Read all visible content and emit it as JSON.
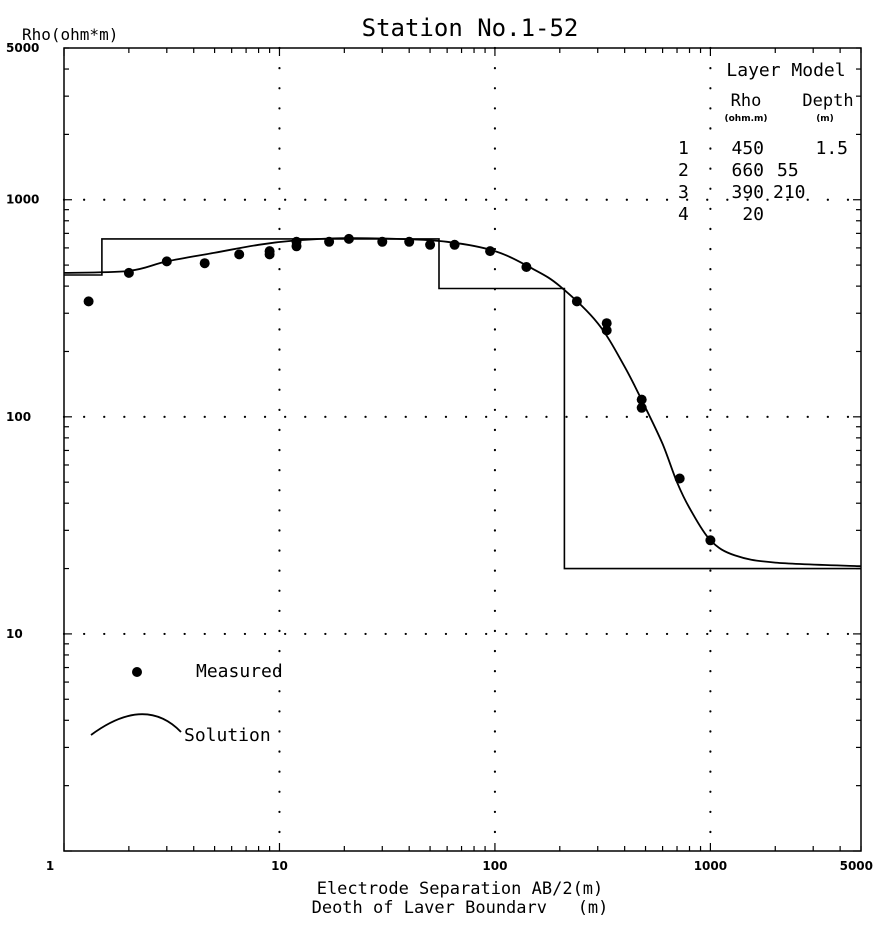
{
  "chart_data": {
    "type": "scatter",
    "title": "Station No.1-52",
    "ylabel": "Rho(ohm*m)",
    "xlabel_lines": [
      "Electrode Separation AB/2(m)",
      "Deoth of Laver Boundarv   (m)"
    ],
    "x_scale": "log",
    "y_scale": "log",
    "xlim": [
      1,
      5000
    ],
    "ylim": [
      1,
      5000
    ],
    "x_ticks": [
      {
        "value": 1,
        "label": "1"
      },
      {
        "value": 10,
        "label": "10"
      },
      {
        "value": 100,
        "label": "100"
      },
      {
        "value": 1000,
        "label": "1000"
      },
      {
        "value": 5000,
        "label": "5000"
      }
    ],
    "y_ticks": [
      {
        "value": 5000,
        "label": "5000"
      },
      {
        "value": 1000,
        "label": "1000"
      },
      {
        "value": 100,
        "label": "100"
      },
      {
        "value": 10,
        "label": "10"
      }
    ],
    "grid": "dotted at decades",
    "legend": {
      "measured": "Measured",
      "solution": "Solution"
    },
    "layer_model": {
      "title": "Layer Model",
      "headers": [
        "Rho",
        "Depth"
      ],
      "units": [
        "(ohm.m)",
        "(m)"
      ],
      "rows": [
        {
          "n": "1",
          "rho": "450",
          "depth": "1.5"
        },
        {
          "n": "2",
          "rho": "660",
          "depth": "55"
        },
        {
          "n": "3",
          "rho": "390",
          "depth": "210"
        },
        {
          "n": "4",
          "rho": "20",
          "depth": ""
        }
      ]
    },
    "series": [
      {
        "name": "Measured",
        "kind": "points",
        "points": [
          [
            1.3,
            340
          ],
          [
            2.0,
            460
          ],
          [
            3.0,
            520
          ],
          [
            4.5,
            510
          ],
          [
            6.5,
            560
          ],
          [
            9.0,
            560
          ],
          [
            9.0,
            580
          ],
          [
            12,
            610
          ],
          [
            12,
            640
          ],
          [
            17,
            640
          ],
          [
            21,
            660
          ],
          [
            30,
            640
          ],
          [
            40,
            640
          ],
          [
            50,
            620
          ],
          [
            65,
            620
          ],
          [
            95,
            580
          ],
          [
            140,
            490
          ],
          [
            240,
            340
          ],
          [
            330,
            270
          ],
          [
            330,
            250
          ],
          [
            480,
            120
          ],
          [
            480,
            110
          ],
          [
            720,
            52
          ],
          [
            1000,
            27
          ]
        ]
      },
      {
        "name": "Solution",
        "kind": "line",
        "points": [
          [
            1,
            460
          ],
          [
            2,
            470
          ],
          [
            3,
            520
          ],
          [
            5,
            570
          ],
          [
            8,
            620
          ],
          [
            12,
            650
          ],
          [
            20,
            665
          ],
          [
            35,
            660
          ],
          [
            60,
            640
          ],
          [
            100,
            580
          ],
          [
            150,
            480
          ],
          [
            200,
            400
          ],
          [
            300,
            270
          ],
          [
            400,
            170
          ],
          [
            500,
            110
          ],
          [
            600,
            75
          ],
          [
            700,
            50
          ],
          [
            800,
            38
          ],
          [
            1000,
            27
          ],
          [
            1300,
            23
          ],
          [
            2000,
            21.3
          ],
          [
            5000,
            20.5
          ]
        ]
      },
      {
        "kind": "layer-model-steps",
        "points": [
          [
            1,
            450
          ],
          [
            1.5,
            450
          ],
          [
            1.5,
            660
          ],
          [
            55,
            660
          ],
          [
            55,
            390
          ],
          [
            210,
            390
          ],
          [
            210,
            20
          ],
          [
            5000,
            20
          ]
        ]
      }
    ]
  }
}
